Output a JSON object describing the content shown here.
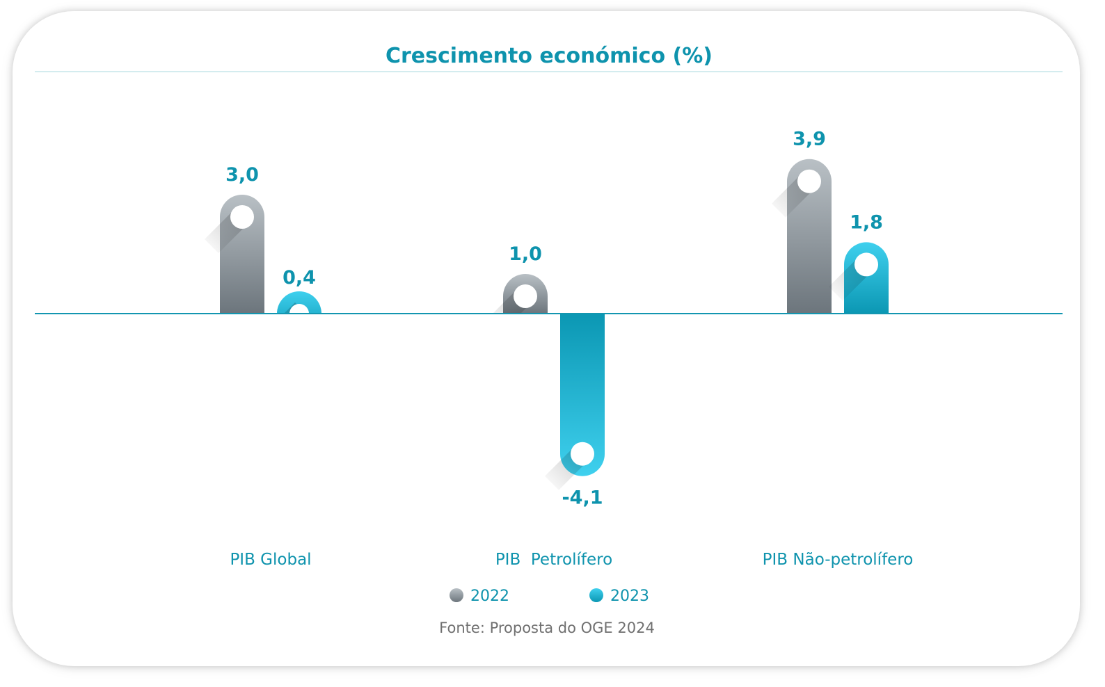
{
  "chart_data": {
    "type": "bar",
    "title": "Crescimento económico (%)",
    "categories": [
      "PIB Global",
      "PIB  Petrolífero",
      "PIB Não-petrolífero"
    ],
    "series": [
      {
        "name": "2022",
        "values": [
          3.0,
          1.0,
          3.9
        ],
        "labels": [
          "3,0",
          "1,0",
          "3,9"
        ],
        "color": "#7c858c"
      },
      {
        "name": "2023",
        "values": [
          0.4,
          -4.1,
          1.8
        ],
        "labels": [
          "0,4",
          "-4,1",
          "1,8"
        ],
        "color": "#1aaecb"
      }
    ],
    "ylim": [
      -4.8,
      5.3
    ],
    "grid": false,
    "legend_position": "bottom",
    "source": "Fonte: Proposta do OGE 2024"
  },
  "colors": {
    "accent": "#0e93ad",
    "series_2022_light": "#b9c0c5",
    "series_2022_dark": "#6c757c",
    "series_2023_light": "#3fd0ee",
    "series_2023_dark": "#0b97b3"
  }
}
